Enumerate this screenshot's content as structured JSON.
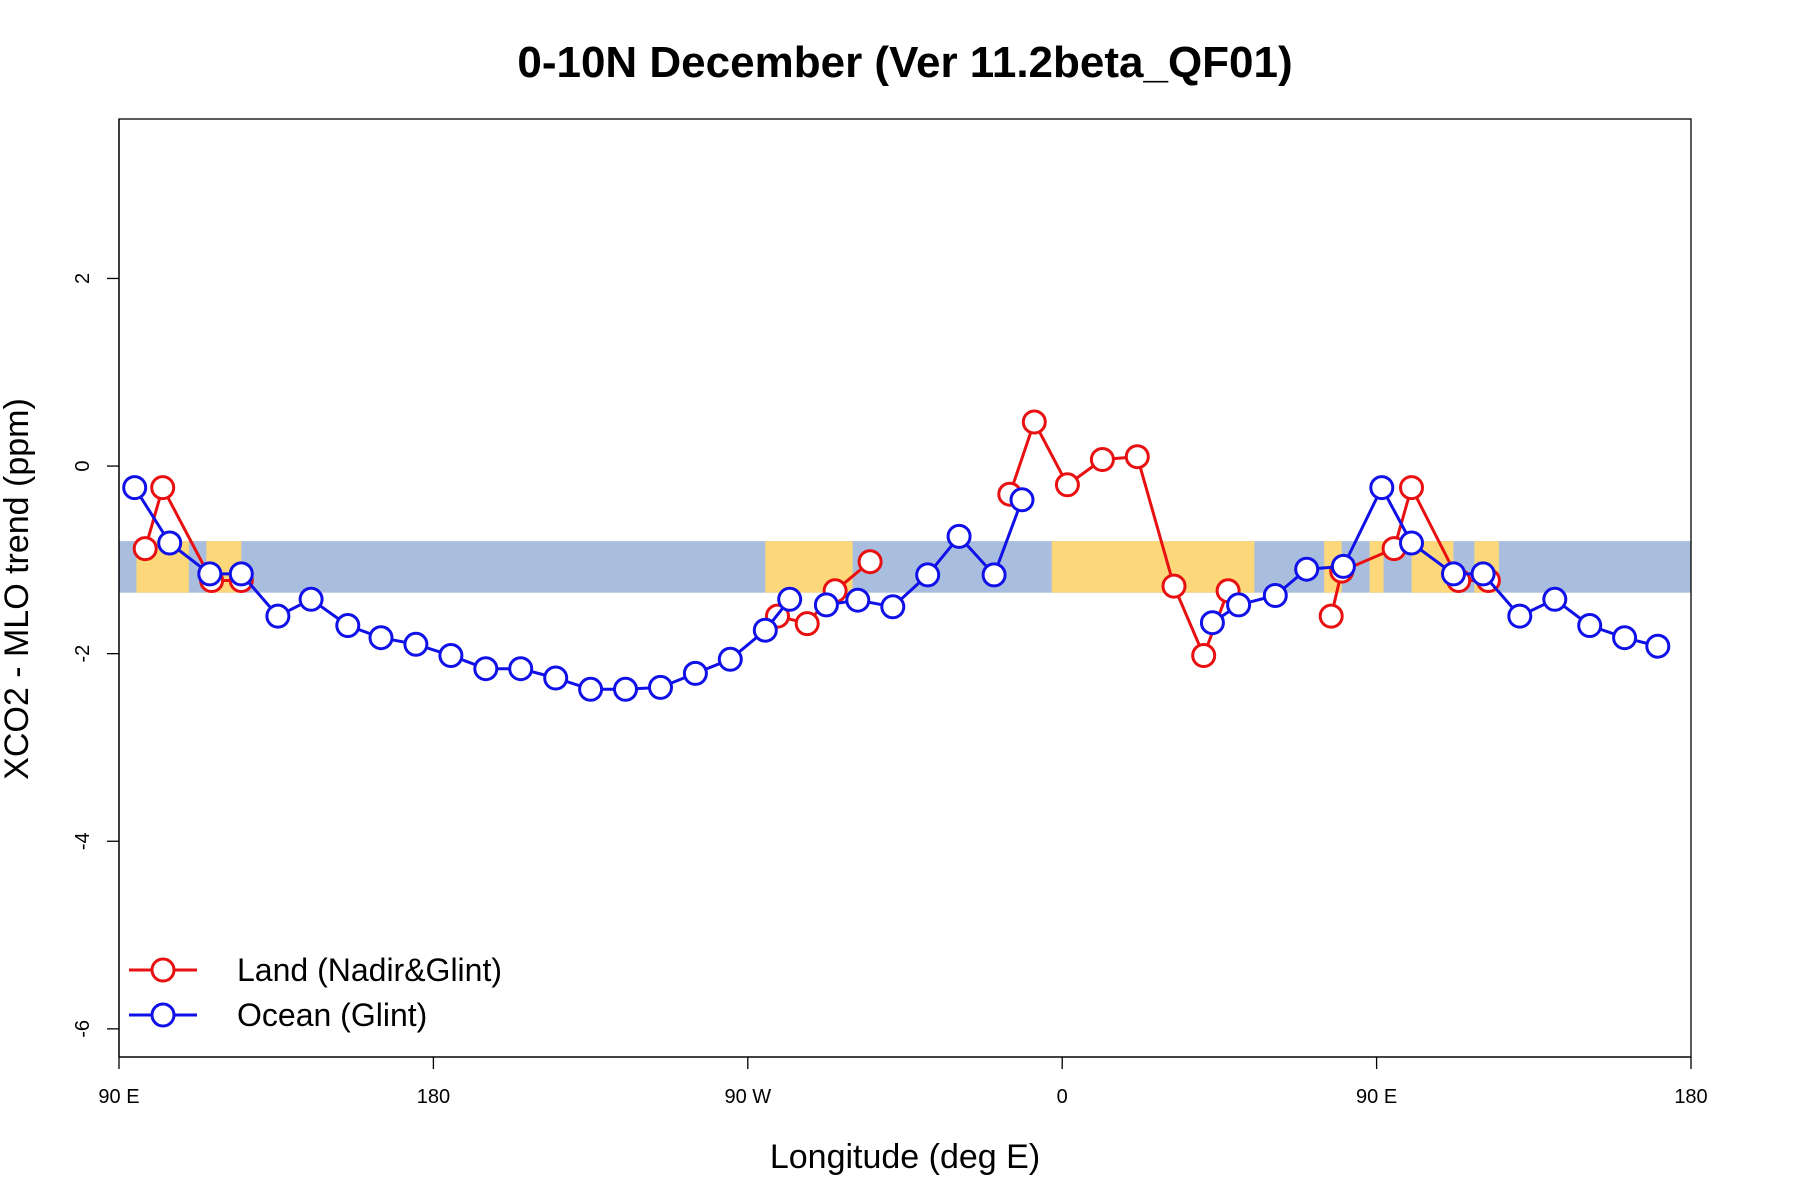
{
  "chart_data": {
    "type": "line",
    "title": "0-10N December (Ver 11.2beta_QF01)",
    "xlabel": "Longitude (deg E)",
    "ylabel": "XCO2 - MLO trend (ppm)",
    "xlim": [
      90,
      540
    ],
    "ylim": [
      -6.3,
      3.7
    ],
    "x_ticks": [
      {
        "value": 90,
        "label": "90 E"
      },
      {
        "value": 180,
        "label": "180"
      },
      {
        "value": 270,
        "label": "90 W"
      },
      {
        "value": 360,
        "label": "0"
      },
      {
        "value": 450,
        "label": "90 E"
      },
      {
        "value": 540,
        "label": "180"
      }
    ],
    "y_ticks": [
      {
        "value": 2,
        "label": "2"
      },
      {
        "value": 0,
        "label": "0"
      },
      {
        "value": -2,
        "label": "-2"
      },
      {
        "value": -4,
        "label": "-4"
      },
      {
        "value": -6,
        "label": "-6"
      }
    ],
    "band": {
      "ymin": -1.35,
      "ymax": -0.8,
      "ocean_color": "#a9bedf",
      "land_color": "#fdd87a"
    },
    "band_land_ranges": [
      [
        95,
        110
      ],
      [
        115,
        125
      ],
      [
        275,
        300
      ],
      [
        357,
        415
      ],
      [
        435,
        440
      ],
      [
        448,
        452
      ],
      [
        460,
        472
      ],
      [
        478,
        485
      ]
    ],
    "legend": {
      "position": "bottom-left"
    },
    "series": [
      {
        "name": "Land (Nadir&Glint)",
        "color": "#e81010",
        "segments": [
          [
            [
              97.5,
              -0.88
            ],
            [
              102.5,
              -0.23
            ],
            [
              116.5,
              -1.22
            ],
            [
              125,
              -1.22
            ]
          ],
          [
            [
              278.5,
              -1.6
            ],
            [
              287,
              -1.68
            ],
            [
              295,
              -1.33
            ],
            [
              305,
              -1.02
            ]
          ],
          [
            [
              345,
              -0.3
            ],
            [
              352,
              0.47
            ],
            [
              361.5,
              -0.2
            ],
            [
              371.5,
              0.07
            ],
            [
              381.5,
              0.1
            ],
            [
              392,
              -1.28
            ],
            [
              400.5,
              -2.02
            ],
            [
              407.5,
              -1.33
            ]
          ],
          [
            [
              437,
              -1.6
            ],
            [
              440,
              -1.12
            ],
            [
              455,
              -0.88
            ],
            [
              460,
              -0.23
            ],
            [
              473.5,
              -1.22
            ],
            [
              482,
              -1.22
            ]
          ]
        ]
      },
      {
        "name": "Ocean (Glint)",
        "color": "#1010e8",
        "segments": [
          [
            [
              94.5,
              -0.23
            ],
            [
              104.5,
              -0.82
            ],
            [
              116,
              -1.15
            ],
            [
              125,
              -1.15
            ],
            [
              135.5,
              -1.6
            ],
            [
              145,
              -1.42
            ],
            [
              155.5,
              -1.7
            ],
            [
              165,
              -1.83
            ],
            [
              175,
              -1.9
            ],
            [
              185,
              -2.02
            ],
            [
              195,
              -2.16
            ],
            [
              205,
              -2.16
            ],
            [
              215,
              -2.26
            ],
            [
              225,
              -2.38
            ],
            [
              235,
              -2.38
            ],
            [
              245,
              -2.36
            ],
            [
              255,
              -2.21
            ],
            [
              265,
              -2.06
            ],
            [
              275,
              -1.75
            ],
            [
              282,
              -1.42
            ]
          ],
          [
            [
              292.5,
              -1.48
            ],
            [
              301.5,
              -1.43
            ],
            [
              311.5,
              -1.5
            ],
            [
              321.5,
              -1.16
            ],
            [
              330.5,
              -0.75
            ],
            [
              340.5,
              -1.16
            ],
            [
              348.5,
              -0.36
            ]
          ],
          [
            [
              403,
              -1.67
            ],
            [
              410.5,
              -1.48
            ],
            [
              421,
              -1.38
            ],
            [
              430,
              -1.1
            ],
            [
              440.5,
              -1.07
            ],
            [
              451.5,
              -0.23
            ],
            [
              460,
              -0.82
            ],
            [
              472,
              -1.15
            ],
            [
              480.5,
              -1.15
            ],
            [
              491,
              -1.6
            ],
            [
              501,
              -1.42
            ],
            [
              511,
              -1.7
            ],
            [
              521,
              -1.83
            ],
            [
              530.5,
              -1.92
            ]
          ]
        ]
      }
    ]
  }
}
